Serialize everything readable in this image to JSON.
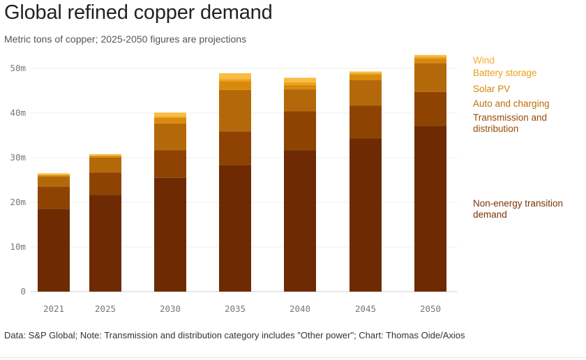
{
  "title": "Global refined copper demand",
  "subtitle": "Metric tons of copper; 2025-2050 figures are projections",
  "footer": "Data: S&P Global; Note: Transmission and distribution category includes \"Other power\"; Chart: Thomas Oide/Axios",
  "chart_data": {
    "type": "bar",
    "stacked": true,
    "title": "Global refined copper demand",
    "subtitle": "Metric tons of copper; 2025-2050 figures are projections",
    "categories": [
      "2021",
      "2025",
      "2030",
      "2035",
      "2040",
      "2045",
      "2050"
    ],
    "y_ticks": [
      {
        "value": 0,
        "label": "0"
      },
      {
        "value": 10,
        "label": "10m"
      },
      {
        "value": 20,
        "label": "20m"
      },
      {
        "value": 30,
        "label": "30m"
      },
      {
        "value": 40,
        "label": "40m"
      },
      {
        "value": 50,
        "label": "50m"
      }
    ],
    "ylim": [
      0,
      53
    ],
    "grid": true,
    "legend_position": "right",
    "series": [
      {
        "name": "Non-energy transition demand",
        "color": "#6e2a02",
        "values": [
          18.5,
          21.7,
          25.5,
          28.4,
          31.7,
          34.3,
          37.1
        ]
      },
      {
        "name": "Transmission and distribution",
        "color": "#8e4303",
        "values": [
          5.0,
          5.0,
          6.2,
          7.5,
          8.7,
          7.4,
          7.6
        ]
      },
      {
        "name": "Auto and charging",
        "color": "#b3690a",
        "values": [
          2.3,
          3.3,
          6.0,
          9.3,
          4.9,
          5.7,
          6.5
        ]
      },
      {
        "name": "Solar PV",
        "color": "#d98a0c",
        "values": [
          0.3,
          0.4,
          1.2,
          1.9,
          1.0,
          1.2,
          1.0
        ]
      },
      {
        "name": "Battery storage",
        "color": "#f0a11a",
        "values": [
          0.1,
          0.1,
          0.3,
          0.5,
          0.6,
          0.3,
          0.4
        ]
      },
      {
        "name": "Wind",
        "color": "#f8bd44",
        "values": [
          0.3,
          0.3,
          0.9,
          1.3,
          1.0,
          0.4,
          0.4
        ]
      }
    ]
  },
  "legend": [
    {
      "label": "Wind",
      "color": "#f4b02a"
    },
    {
      "label": "Battery storage",
      "color": "#eb9e15"
    },
    {
      "label": "Solar PV",
      "color": "#d48407"
    },
    {
      "label": "Auto and charging",
      "color": "#b96e08"
    },
    {
      "label": "Transmission and distribution",
      "color": "#9a4b05"
    },
    {
      "label": "Non-energy transition demand",
      "color": "#7a3204"
    }
  ]
}
